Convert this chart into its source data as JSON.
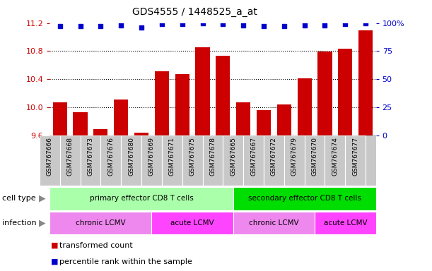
{
  "title": "GDS4555 / 1448525_a_at",
  "samples": [
    "GSM767666",
    "GSM767668",
    "GSM767673",
    "GSM767676",
    "GSM767680",
    "GSM767669",
    "GSM767671",
    "GSM767675",
    "GSM767678",
    "GSM767665",
    "GSM767667",
    "GSM767672",
    "GSM767679",
    "GSM767670",
    "GSM767674",
    "GSM767677"
  ],
  "bar_values": [
    10.07,
    9.93,
    9.69,
    10.11,
    9.64,
    10.51,
    10.47,
    10.86,
    10.73,
    10.07,
    9.96,
    10.04,
    10.41,
    10.79,
    10.83,
    11.1
  ],
  "percentile_values": [
    97,
    97,
    97,
    98,
    96,
    99,
    99,
    100,
    99,
    98,
    97,
    97,
    98,
    98,
    99,
    100
  ],
  "ylim": [
    9.6,
    11.2
  ],
  "y2lim": [
    0,
    100
  ],
  "yticks": [
    9.6,
    10.0,
    10.4,
    10.8,
    11.2
  ],
  "y2ticks": [
    0,
    25,
    50,
    75,
    100
  ],
  "y2ticklabels": [
    "0",
    "25",
    "50",
    "75",
    "100%"
  ],
  "bar_color": "#cc0000",
  "dot_color": "#0000cc",
  "xticklabel_bg": "#c8c8c8",
  "cell_type_groups": [
    {
      "label": "primary effector CD8 T cells",
      "start": 0,
      "end": 8,
      "color": "#aaffaa"
    },
    {
      "label": "secondary effector CD8 T cells",
      "start": 9,
      "end": 15,
      "color": "#00dd00"
    }
  ],
  "infection_groups": [
    {
      "label": "chronic LCMV",
      "start": 0,
      "end": 4,
      "color": "#ee88ee"
    },
    {
      "label": "acute LCMV",
      "start": 5,
      "end": 8,
      "color": "#ff44ff"
    },
    {
      "label": "chronic LCMV",
      "start": 9,
      "end": 12,
      "color": "#ee88ee"
    },
    {
      "label": "acute LCMV",
      "start": 13,
      "end": 15,
      "color": "#ff44ff"
    }
  ],
  "legend_items": [
    {
      "label": "transformed count",
      "color": "#cc0000"
    },
    {
      "label": "percentile rank within the sample",
      "color": "#0000cc"
    }
  ],
  "cell_type_label": "cell type",
  "infection_label": "infection",
  "arrow_color": "#888888"
}
